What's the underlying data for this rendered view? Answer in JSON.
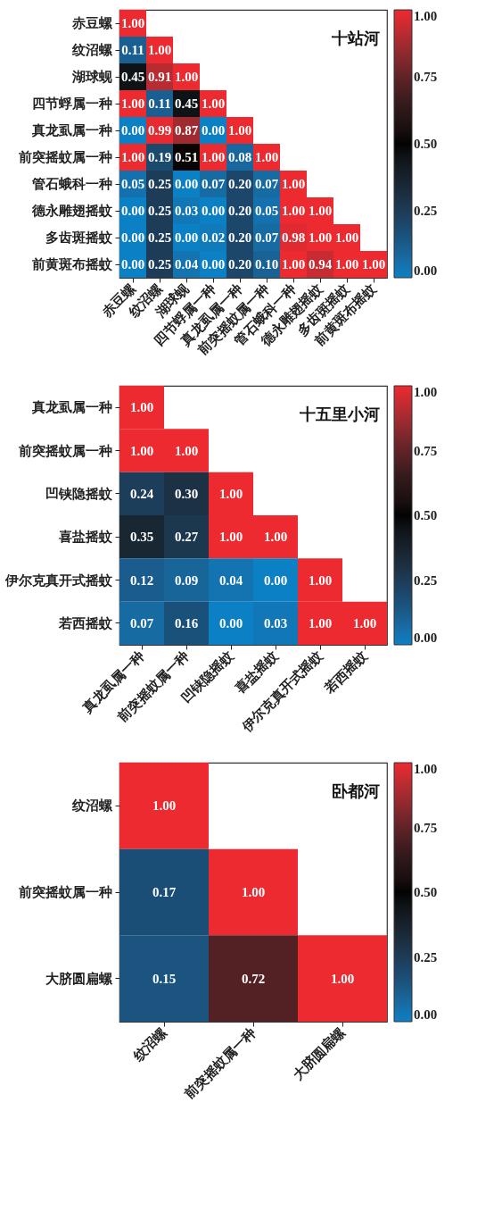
{
  "chart_data": [
    {
      "type": "heatmap",
      "title": "十站河",
      "categories": [
        "赤豆螺",
        "纹沼螺",
        "湖球蚬",
        "四节蜉属一种",
        "真龙虱属一种",
        "前突摇蚊属一种",
        "管石蛾科一种",
        "德永雕翅摇蚊",
        "多齿斑摇蚊",
        "前黄斑布摇蚊"
      ],
      "y_categories": [
        "赤豆螺",
        "纹沼螺",
        "湖球蚬",
        "四节蜉属一种",
        "真龙虱属一种",
        "前突摇蚊属一种",
        "管石蛾科一种",
        "德永雕翅摇蚊",
        "多齿斑摇蚊",
        "前黄斑布摇蚊"
      ],
      "cells": [
        [
          1.0,
          null,
          null,
          null,
          null,
          null,
          null,
          null,
          null,
          null
        ],
        [
          0.11,
          1.0,
          null,
          null,
          null,
          null,
          null,
          null,
          null,
          null
        ],
        [
          0.45,
          0.91,
          1.0,
          null,
          null,
          null,
          null,
          null,
          null,
          null
        ],
        [
          1.0,
          0.11,
          0.45,
          1.0,
          null,
          null,
          null,
          null,
          null,
          null
        ],
        [
          0.0,
          0.99,
          0.87,
          0.0,
          1.0,
          null,
          null,
          null,
          null,
          null
        ],
        [
          1.0,
          0.19,
          0.51,
          1.0,
          0.08,
          1.0,
          null,
          null,
          null,
          null
        ],
        [
          0.05,
          0.25,
          0.0,
          0.07,
          0.2,
          0.07,
          1.0,
          null,
          null,
          null
        ],
        [
          0.0,
          0.25,
          0.03,
          0.0,
          0.2,
          0.05,
          1.0,
          1.0,
          null,
          null
        ],
        [
          0.0,
          0.25,
          0.0,
          0.02,
          0.2,
          0.07,
          0.98,
          1.0,
          1.0,
          null
        ],
        [
          0.0,
          0.25,
          0.04,
          0.0,
          0.2,
          0.1,
          1.0,
          0.94,
          1.0,
          1.0
        ]
      ],
      "cell_labels": [
        [
          "1.00",
          null,
          null,
          null,
          null,
          null,
          null,
          null,
          null,
          null
        ],
        [
          "0.11",
          "1.00",
          null,
          null,
          null,
          null,
          null,
          null,
          null,
          null
        ],
        [
          "0.45",
          "0.91",
          "1.00",
          null,
          null,
          null,
          null,
          null,
          null,
          null
        ],
        [
          "1.00",
          "0.11",
          "0.45",
          "1.00",
          null,
          null,
          null,
          null,
          null,
          null
        ],
        [
          "0.00",
          "0.99",
          "0.87",
          "0.00",
          "1.00",
          null,
          null,
          null,
          null,
          null
        ],
        [
          "1.00",
          "0.19",
          "0.51",
          "1.00",
          "0.08",
          "1.00",
          null,
          null,
          null,
          null
        ],
        [
          "0.05",
          "0.25",
          "0.00",
          "0.07",
          "0.20",
          "0.07",
          "1.00",
          null,
          null,
          null
        ],
        [
          "0.00",
          "0.25",
          "0.03",
          "0.00",
          "0.20",
          "0.05",
          "1.00",
          "1.00",
          null,
          null
        ],
        [
          "0.00",
          "0.25",
          "0.00",
          "0.02",
          "0.20",
          "0.07",
          "0.98",
          "1.00",
          "1.00",
          null
        ],
        [
          "0.00",
          "0.25",
          "0.04",
          "0.00",
          "0.20",
          "0.10",
          "1.00",
          "0.94",
          "1.00",
          "1.00"
        ]
      ],
      "clim": [
        0,
        1
      ],
      "cticks": [
        {
          "value": 0,
          "label": "0.00"
        },
        {
          "value": 0.25,
          "label": "0.25"
        },
        {
          "value": 0.5,
          "label": "0.50"
        },
        {
          "value": 0.75,
          "label": "0.75"
        },
        {
          "value": 1,
          "label": "1.00"
        }
      ],
      "data_labels": true
    },
    {
      "type": "heatmap",
      "title": "十五里小河",
      "categories": [
        "真龙虱属一种",
        "前突摇蚊属一种",
        "凹铗隐摇蚊",
        "喜盐摇蚊",
        "伊尔克真开式摇蚊",
        "若西摇蚊"
      ],
      "y_categories": [
        "真龙虱属一种",
        "前突摇蚊属一种",
        "凹铗隐摇蚊",
        "喜盐摇蚊",
        "伊尔克真开式摇蚊",
        "若西摇蚊"
      ],
      "cells": [
        [
          1.0,
          null,
          null,
          null,
          null,
          null
        ],
        [
          1.0,
          1.0,
          null,
          null,
          null,
          null
        ],
        [
          0.24,
          0.3,
          1.0,
          null,
          null,
          null
        ],
        [
          0.35,
          0.27,
          1.0,
          1.0,
          null,
          null
        ],
        [
          0.12,
          0.09,
          0.04,
          0.0,
          1.0,
          null
        ],
        [
          0.07,
          0.16,
          0.0,
          0.03,
          1.0,
          1.0
        ]
      ],
      "cell_labels": [
        [
          "1.00",
          null,
          null,
          null,
          null,
          null
        ],
        [
          "1.00",
          "1.00",
          null,
          null,
          null,
          null
        ],
        [
          "0.24",
          "0.30",
          "1.00",
          null,
          null,
          null
        ],
        [
          "0.35",
          "0.27",
          "1.00",
          "1.00",
          null,
          null
        ],
        [
          "0.12",
          "0.09",
          "0.04",
          "0.00",
          "1.00",
          null
        ],
        [
          "0.07",
          "0.16",
          "0.00",
          "0.03",
          "1.00",
          "1.00"
        ]
      ],
      "clim": [
        0,
        1
      ],
      "cticks": [
        {
          "value": 0,
          "label": "0.00"
        },
        {
          "value": 0.25,
          "label": "0.25"
        },
        {
          "value": 0.5,
          "label": "0.50"
        },
        {
          "value": 0.75,
          "label": "0.75"
        },
        {
          "value": 1,
          "label": "1.00"
        }
      ],
      "data_labels": true
    },
    {
      "type": "heatmap",
      "title": "卧都河",
      "categories": [
        "纹沼螺",
        "前突摇蚊属一种",
        "大脐圆扁螺"
      ],
      "y_categories": [
        "纹沼螺",
        "前突摇蚊属一种",
        "大脐圆扁螺"
      ],
      "cells": [
        [
          1.0,
          null,
          null
        ],
        [
          0.17,
          1.0,
          null
        ],
        [
          0.15,
          0.72,
          1.0
        ]
      ],
      "cell_labels": [
        [
          "1.00",
          null,
          null
        ],
        [
          "0.17",
          "1.00",
          null
        ],
        [
          "0.15",
          "0.72",
          "1.00"
        ]
      ],
      "clim": [
        0,
        1
      ],
      "cticks": [
        {
          "value": 0,
          "label": "0.00"
        },
        {
          "value": 0.25,
          "label": "0.25"
        },
        {
          "value": 0.5,
          "label": "0.50"
        },
        {
          "value": 0.75,
          "label": "0.75"
        },
        {
          "value": 1,
          "label": "1.00"
        }
      ],
      "data_labels": true
    }
  ]
}
